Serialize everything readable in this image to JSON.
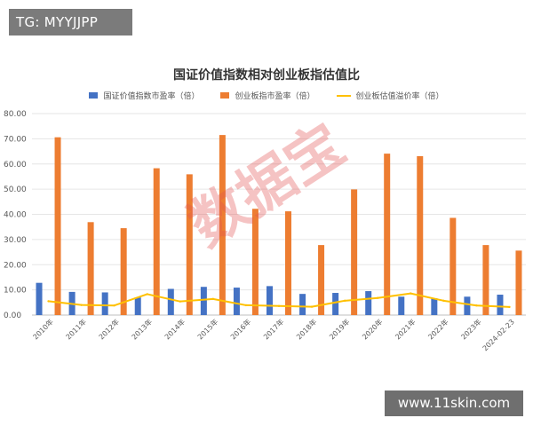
{
  "overlays": {
    "tag": "TG: MYYJJPP",
    "site": "www.11skin.com",
    "watermark": "数据宝"
  },
  "chart_data": {
    "type": "bar",
    "title": "国证价值指数相对创业板指估值比",
    "categories": [
      "2010年",
      "2011年",
      "2012年",
      "2013年",
      "2014年",
      "2015年",
      "2016年",
      "2017年",
      "2018年",
      "2019年",
      "2020年",
      "2021年",
      "2022年",
      "2023年",
      "2024-02-23"
    ],
    "series": [
      {
        "name": "国证价值指数市盈率（倍）",
        "kind": "bar",
        "color": "#4472c4",
        "values": [
          12.8,
          9.2,
          9.0,
          7.0,
          10.4,
          11.2,
          10.9,
          11.5,
          8.4,
          8.8,
          9.5,
          7.3,
          6.7,
          7.3,
          8.1
        ]
      },
      {
        "name": "创业板指市盈率（倍）",
        "kind": "bar",
        "color": "#ed7d31",
        "values": [
          70.6,
          36.9,
          34.5,
          58.3,
          55.9,
          71.5,
          42.2,
          41.2,
          27.8,
          49.9,
          64.1,
          63.1,
          38.6,
          27.8,
          25.6
        ]
      },
      {
        "name": "创业板估值溢价率（倍）",
        "kind": "line",
        "color": "#ffc000",
        "values": [
          5.5,
          4.0,
          3.8,
          8.3,
          5.4,
          6.4,
          3.9,
          3.6,
          3.3,
          5.7,
          6.8,
          8.6,
          5.7,
          3.8,
          3.2
        ]
      }
    ],
    "ylim": [
      0,
      80
    ],
    "yticks": [
      "0.00",
      "10.00",
      "20.00",
      "30.00",
      "40.00",
      "50.00",
      "60.00",
      "70.00",
      "80.00"
    ],
    "grid": true,
    "legend_position": "top"
  }
}
